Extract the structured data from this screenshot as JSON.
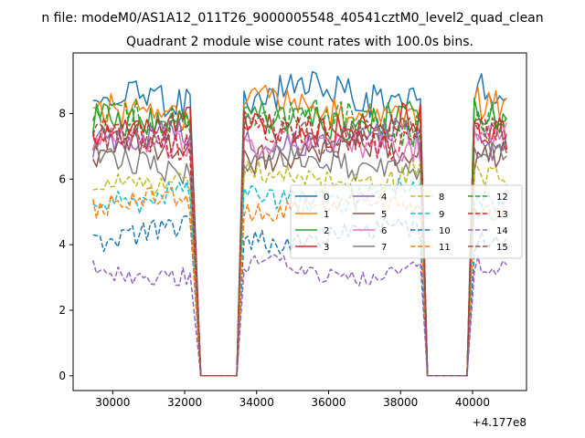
{
  "figure": {
    "suptitle": "n file: modeM0/AS1A12_011T26_9000005548_40541cztM0_level2_quad_clean"
  },
  "chart_data": {
    "type": "line",
    "title": "Quadrant 2 module wise count rates with 100.0s bins.",
    "xlabel": "",
    "ylabel": "",
    "x_offset_label": "+4.177e8",
    "xlim": [
      28900,
      41500
    ],
    "ylim": [
      -0.45,
      9.85
    ],
    "xticks": [
      30000,
      32000,
      34000,
      36000,
      38000,
      40000
    ],
    "xtick_labels": [
      "30000",
      "32000",
      "34000",
      "36000",
      "38000",
      "40000"
    ],
    "yticks": [
      0,
      2,
      4,
      6,
      8
    ],
    "ytick_labels": [
      "0",
      "2",
      "4",
      "6",
      "8"
    ],
    "grid": false,
    "legend_position": "center-right",
    "legend_columns": 4,
    "segments": [
      [
        29450,
        32150
      ],
      [
        33650,
        38550
      ],
      [
        40050,
        40950
      ]
    ],
    "gap_ranges": [
      [
        32450,
        33450
      ],
      [
        38750,
        39850
      ]
    ],
    "series": [
      {
        "name": "0",
        "level": 8.5,
        "color": "#1f77b4",
        "dash": "solid"
      },
      {
        "name": "1",
        "level": 8.1,
        "color": "#ff7f0e",
        "dash": "solid"
      },
      {
        "name": "2",
        "level": 7.9,
        "color": "#2ca02c",
        "dash": "solid"
      },
      {
        "name": "3",
        "level": 7.6,
        "color": "#d62728",
        "dash": "solid"
      },
      {
        "name": "4",
        "level": 7.2,
        "color": "#9467bd",
        "dash": "solid"
      },
      {
        "name": "5",
        "level": 6.8,
        "color": "#8c564b",
        "dash": "solid"
      },
      {
        "name": "6",
        "level": 7.1,
        "color": "#e377c2",
        "dash": "solid"
      },
      {
        "name": "7",
        "level": 6.5,
        "color": "#7f7f7f",
        "dash": "solid"
      },
      {
        "name": "8",
        "level": 6.0,
        "color": "#bcbd22",
        "dash": "dashed"
      },
      {
        "name": "9",
        "level": 5.5,
        "color": "#17becf",
        "dash": "dashed"
      },
      {
        "name": "10",
        "level": 4.3,
        "color": "#1f77b4",
        "dash": "dashed"
      },
      {
        "name": "11",
        "level": 5.2,
        "color": "#ff7f0e",
        "dash": "dashed"
      },
      {
        "name": "12",
        "level": 7.7,
        "color": "#2ca02c",
        "dash": "dashed"
      },
      {
        "name": "13",
        "level": 7.3,
        "color": "#d62728",
        "dash": "dashed"
      },
      {
        "name": "14",
        "level": 3.2,
        "color": "#9467bd",
        "dash": "dashed"
      },
      {
        "name": "15",
        "level": 7.5,
        "color": "#8c564b",
        "dash": "dashed"
      }
    ]
  }
}
